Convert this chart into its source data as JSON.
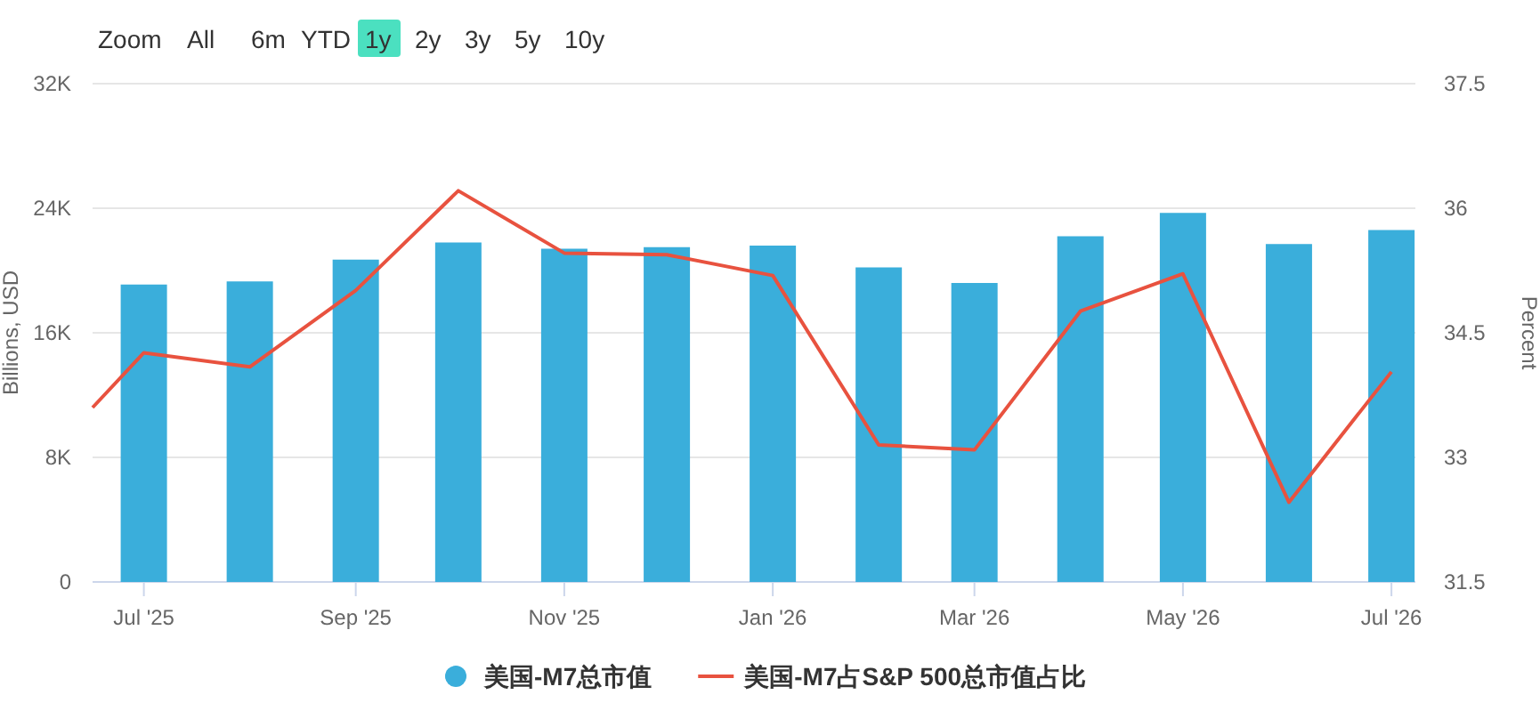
{
  "chart_data": {
    "type": "bar",
    "xlabel": null,
    "ylabel": "Billions, USD",
    "y2label": "Percent",
    "annotations": [
      "Zoom",
      "All",
      "6m",
      "YTD",
      "1y",
      "2y",
      "3y",
      "5y",
      "10y"
    ],
    "x": [
      "2025-07-01",
      "2025-08-01",
      "2025-09-01",
      "2025-10-01",
      "2025-11-01",
      "2025-12-01",
      "2026-01-01",
      "2026-02-01",
      "2026-03-01",
      "2026-04-01",
      "2026-05-01",
      "2026-06-01",
      "2026-07-01"
    ],
    "series": [
      {
        "name": "美国-M7总市值",
        "color": "#3aaedb",
        "values": [
          19100,
          19300,
          20700,
          21800,
          21400,
          21500,
          21600,
          20200,
          19200,
          22200,
          23700,
          21700,
          22600
        ]
      },
      {
        "name": "美国-M7占S&P 500总市值占比",
        "type": "line",
        "axis": "y2",
        "color": "#e8523f",
        "x": [
          "2025-06-16",
          "2025-07-01",
          "2025-08-01",
          "2025-09-01",
          "2025-10-01",
          "2025-11-01",
          "2025-12-01",
          "2026-01-01",
          "2026-02-01",
          "2026-03-01",
          "2026-04-01",
          "2026-05-01",
          "2026-06-01",
          "2026-07-01"
        ],
        "values": [
          33.6,
          34.26,
          34.09,
          35.01,
          36.21,
          35.46,
          35.44,
          35.19,
          33.15,
          33.09,
          34.76,
          35.21,
          32.46,
          34.03
        ]
      }
    ],
    "xlim": [
      "2025-06-16",
      "2026-07-08"
    ],
    "xticks": [
      {
        "value": "2025-07-01",
        "label": "Jul '25"
      },
      {
        "value": "2025-09-01",
        "label": "Sep '25"
      },
      {
        "value": "2025-11-01",
        "label": "Nov '25"
      },
      {
        "value": "2026-01-01",
        "label": "Jan '26"
      },
      {
        "value": "2026-03-01",
        "label": "Mar '26"
      },
      {
        "value": "2026-05-01",
        "label": "May '26"
      },
      {
        "value": "2026-07-01",
        "label": "Jul '26"
      }
    ],
    "ylim": [
      0,
      32000
    ],
    "yticks": [
      {
        "value": 0,
        "label": "0"
      },
      {
        "value": 8000,
        "label": "8K"
      },
      {
        "value": 16000,
        "label": "16K"
      },
      {
        "value": 24000,
        "label": "24K"
      },
      {
        "value": 32000,
        "label": "32K"
      }
    ],
    "y2lim": [
      31.5,
      37.5
    ],
    "y2ticks": [
      31.5,
      33,
      34.5,
      36,
      37.5
    ],
    "grid": "y",
    "legend": "bottom",
    "marker": "none",
    "line_style": "solid"
  }
}
